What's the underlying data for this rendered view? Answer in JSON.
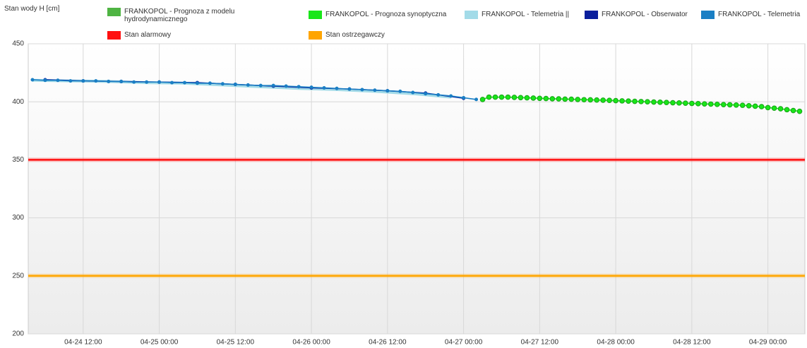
{
  "chart_data": {
    "type": "line",
    "y_label": "Stan wody H [cm]",
    "ylim": [
      200,
      450
    ],
    "yticks": [
      200,
      250,
      300,
      350,
      400,
      450
    ],
    "xlim": [
      "04-24 03:20",
      "04-29 05:50"
    ],
    "xticks": [
      "04-24 12:00",
      "04-25 00:00",
      "04-25 12:00",
      "04-26 00:00",
      "04-26 12:00",
      "04-27 00:00",
      "04-27 12:00",
      "04-28 00:00",
      "04-28 12:00",
      "04-29 00:00"
    ],
    "grid": true,
    "series": [
      {
        "name": "FRANKOPOL - Prognoza z modelu hydrodynamicznego",
        "color": "#4fb443",
        "x": [],
        "values": []
      },
      {
        "name": "FRANKOPOL - Prognoza synoptyczna",
        "color": "#19e619",
        "markers": true,
        "x": [
          "04-27 03:00",
          "04-27 04:00",
          "04-27 05:00",
          "04-27 06:00",
          "04-27 07:00",
          "04-27 08:00",
          "04-27 09:00",
          "04-27 10:00",
          "04-27 11:00",
          "04-27 12:00",
          "04-27 13:00",
          "04-27 14:00",
          "04-27 15:00",
          "04-27 16:00",
          "04-27 17:00",
          "04-27 18:00",
          "04-27 19:00",
          "04-27 20:00",
          "04-27 21:00",
          "04-27 22:00",
          "04-27 23:00",
          "04-28 00:00",
          "04-28 01:00",
          "04-28 02:00",
          "04-28 03:00",
          "04-28 04:00",
          "04-28 05:00",
          "04-28 06:00",
          "04-28 07:00",
          "04-28 08:00",
          "04-28 09:00",
          "04-28 10:00",
          "04-28 11:00",
          "04-28 12:00",
          "04-28 13:00",
          "04-28 14:00",
          "04-28 15:00",
          "04-28 16:00",
          "04-28 17:00",
          "04-28 18:00",
          "04-28 19:00",
          "04-28 20:00",
          "04-28 21:00",
          "04-28 22:00",
          "04-28 23:00",
          "04-29 00:00",
          "04-29 01:00",
          "04-29 02:00",
          "04-29 03:00",
          "04-29 04:00",
          "04-29 05:00"
        ],
        "values": [
          402,
          404,
          404,
          404,
          404,
          403.8,
          403.6,
          403.4,
          403.2,
          403,
          402.8,
          402.6,
          402.5,
          402.3,
          402.2,
          402,
          401.8,
          401.7,
          401.5,
          401.4,
          401.2,
          401,
          400.8,
          400.6,
          400.4,
          400.2,
          400,
          399.8,
          399.6,
          399.4,
          399.2,
          399,
          398.8,
          398.6,
          398.4,
          398.2,
          398,
          397.8,
          397.6,
          397.4,
          397.2,
          397,
          396.6,
          396.2,
          395.8,
          395,
          394.5,
          394,
          393.2,
          392.5,
          391.8
        ]
      },
      {
        "name": "FRANKOPOL - Telemetria ||",
        "color": "#a3dbe8",
        "x": [
          "04-24 04:00",
          "04-24 10:00",
          "04-24 16:00",
          "04-24 22:00",
          "04-25 04:00",
          "04-25 10:00",
          "04-25 16:00",
          "04-25 22:00",
          "04-26 04:00",
          "04-26 10:00",
          "04-26 16:00",
          "04-26 22:00"
        ],
        "values": [
          418.5,
          418,
          417.5,
          416.5,
          416,
          414.5,
          413,
          411.5,
          410.5,
          409,
          407,
          404
        ]
      },
      {
        "name": "FRANKOPOL - Obserwator",
        "color": "#0a1f9c",
        "markers": true,
        "x": [
          "04-24 06:00",
          "04-24 12:00",
          "04-24 18:00",
          "04-25 00:00",
          "04-25 06:00",
          "04-25 12:00",
          "04-25 18:00",
          "04-26 00:00",
          "04-26 06:00",
          "04-26 12:00",
          "04-26 18:00",
          "04-27 00:00"
        ],
        "values": [
          419,
          418,
          417.5,
          417,
          416.5,
          415,
          413.5,
          412,
          411,
          409.5,
          407.5,
          403
        ]
      },
      {
        "name": "FRANKOPOL - Telemetria",
        "color": "#1b7fc4",
        "markers": true,
        "x": [
          "04-24 04:00",
          "04-24 06:00",
          "04-24 08:00",
          "04-24 10:00",
          "04-24 12:00",
          "04-24 14:00",
          "04-24 16:00",
          "04-24 18:00",
          "04-24 20:00",
          "04-24 22:00",
          "04-25 00:00",
          "04-25 02:00",
          "04-25 04:00",
          "04-25 06:00",
          "04-25 08:00",
          "04-25 10:00",
          "04-25 12:00",
          "04-25 14:00",
          "04-25 16:00",
          "04-25 18:00",
          "04-25 20:00",
          "04-25 22:00",
          "04-26 00:00",
          "04-26 02:00",
          "04-26 04:00",
          "04-26 06:00",
          "04-26 08:00",
          "04-26 10:00",
          "04-26 12:00",
          "04-26 14:00",
          "04-26 16:00",
          "04-26 18:00",
          "04-26 20:00",
          "04-26 22:00",
          "04-27 00:00",
          "04-27 02:00"
        ],
        "values": [
          419,
          418.5,
          418.5,
          418,
          418,
          418,
          417.5,
          417.5,
          417,
          417,
          417,
          416.5,
          416.5,
          416,
          416,
          415.5,
          415,
          414.5,
          414,
          414,
          413.5,
          413,
          412.5,
          412,
          411.5,
          411,
          410.5,
          410,
          409.5,
          409,
          408,
          407,
          406,
          405,
          403.5,
          402
        ]
      }
    ],
    "thresholds": [
      {
        "name": "Stan alarmowy",
        "color": "#ff1010",
        "value": 350
      },
      {
        "name": "Stan ostrzegawczy",
        "color": "#ffa500",
        "value": 250
      }
    ]
  }
}
